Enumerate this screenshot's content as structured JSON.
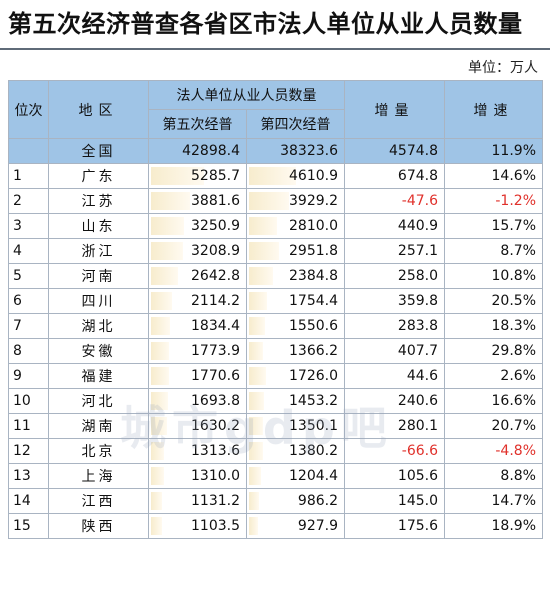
{
  "title": "第五次经济普查各省区市法人单位从业人员数量",
  "unit": "单位：万人",
  "headers": {
    "rank": "位次",
    "region": "地区",
    "group": "法人单位从业人员数量",
    "fifth": "第五次经普",
    "fourth": "第四次经普",
    "increase": "增量",
    "growth": "增速"
  },
  "total": {
    "region": "全国",
    "fifth": "42898.4",
    "fourth": "38323.6",
    "increase": "4574.8",
    "growth": "11.9%"
  },
  "rows": [
    {
      "rank": "1",
      "region": "广东",
      "fifth": "5285.7",
      "fourth": "4610.9",
      "increase": "674.8",
      "growth": "14.6%"
    },
    {
      "rank": "2",
      "region": "江苏",
      "fifth": "3881.6",
      "fourth": "3929.2",
      "increase": "-47.6",
      "growth": "-1.2%"
    },
    {
      "rank": "3",
      "region": "山东",
      "fifth": "3250.9",
      "fourth": "2810.0",
      "increase": "440.9",
      "growth": "15.7%"
    },
    {
      "rank": "4",
      "region": "浙江",
      "fifth": "3208.9",
      "fourth": "2951.8",
      "increase": "257.1",
      "growth": "8.7%"
    },
    {
      "rank": "5",
      "region": "河南",
      "fifth": "2642.8",
      "fourth": "2384.8",
      "increase": "258.0",
      "growth": "10.8%"
    },
    {
      "rank": "6",
      "region": "四川",
      "fifth": "2114.2",
      "fourth": "1754.4",
      "increase": "359.8",
      "growth": "20.5%"
    },
    {
      "rank": "7",
      "region": "湖北",
      "fifth": "1834.4",
      "fourth": "1550.6",
      "increase": "283.8",
      "growth": "18.3%"
    },
    {
      "rank": "8",
      "region": "安徽",
      "fifth": "1773.9",
      "fourth": "1366.2",
      "increase": "407.7",
      "growth": "29.8%"
    },
    {
      "rank": "9",
      "region": "福建",
      "fifth": "1770.6",
      "fourth": "1726.0",
      "increase": "44.6",
      "growth": "2.6%"
    },
    {
      "rank": "10",
      "region": "河北",
      "fifth": "1693.8",
      "fourth": "1453.2",
      "increase": "240.6",
      "growth": "16.6%"
    },
    {
      "rank": "11",
      "region": "湖南",
      "fifth": "1630.2",
      "fourth": "1350.1",
      "increase": "280.1",
      "growth": "20.7%"
    },
    {
      "rank": "12",
      "region": "北京",
      "fifth": "1313.6",
      "fourth": "1380.2",
      "increase": "-66.6",
      "growth": "-4.8%"
    },
    {
      "rank": "13",
      "region": "上海",
      "fifth": "1310.0",
      "fourth": "1204.4",
      "increase": "105.6",
      "growth": "8.8%"
    },
    {
      "rank": "14",
      "region": "江西",
      "fifth": "1131.2",
      "fourth": "986.2",
      "increase": "145.0",
      "growth": "14.7%"
    },
    {
      "rank": "15",
      "region": "陕西",
      "fifth": "1103.5",
      "fourth": "927.9",
      "increase": "175.6",
      "growth": "18.9%"
    }
  ],
  "watermark": "城市gdp吧",
  "colors": {
    "header_bg": "#9fc4e6",
    "negative": "#e0312b",
    "bar": "#f7eccd"
  }
}
